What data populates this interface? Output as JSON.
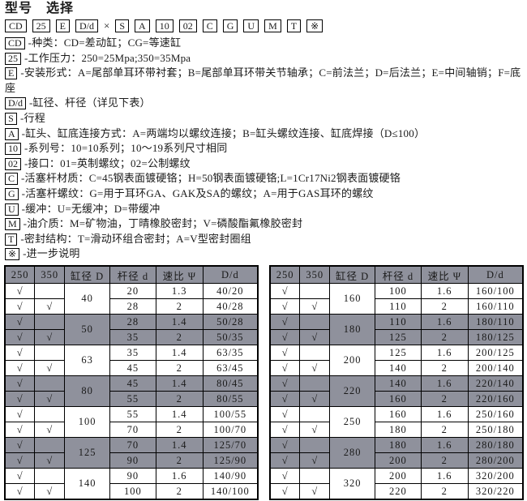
{
  "title": "型号　选择",
  "model_code": {
    "items": [
      {
        "label": "CD",
        "boxed": true
      },
      {
        "label": "25",
        "boxed": true
      },
      {
        "label": "E",
        "boxed": true
      },
      {
        "label": "D/d",
        "boxed": true
      },
      {
        "label": "×",
        "boxed": false
      },
      {
        "label": "S",
        "boxed": true
      },
      {
        "label": "A",
        "boxed": true
      },
      {
        "label": "10",
        "boxed": true
      },
      {
        "label": "02",
        "boxed": true
      },
      {
        "label": "C",
        "boxed": true
      },
      {
        "label": "G",
        "boxed": true
      },
      {
        "label": "U",
        "boxed": true
      },
      {
        "label": "M",
        "boxed": true
      },
      {
        "label": "T",
        "boxed": true
      },
      {
        "label": "※",
        "boxed": true
      }
    ]
  },
  "definitions": [
    {
      "code": "CD",
      "text": "-种类：CD=差动缸；CG=等速缸"
    },
    {
      "code": "25",
      "text": "-工作压力：250=25Mpa;350=35Mpa"
    },
    {
      "code": "E",
      "text": "-安装形式：A=尾部单耳环带衬套；B=尾部单耳环带关节轴承；C=前法兰；D=后法兰；E=中间轴销；F=底座"
    },
    {
      "code": "D/d",
      "text": "-缸径、杆径（详见下表）"
    },
    {
      "code": "S",
      "text": "-行程"
    },
    {
      "code": "A",
      "text": "-缸头、缸底连接方式：A=两端均以螺纹连接；B=缸头螺纹连接、缸底焊接（D≤100）"
    },
    {
      "code": "10",
      "text": "-系列号：10=10系列；10～19系列尺寸相同"
    },
    {
      "code": "02",
      "text": "-接口：01=英制螺纹；02=公制螺纹"
    },
    {
      "code": "C",
      "text": "-活塞杆材质：C=45钢表面镀硬铬；H=50钢表面镀硬铬;L=1Cr17Ni2钢表面镀硬铬"
    },
    {
      "code": "G",
      "text": "-活塞杆螺纹：G=用于耳环GA、GAK及SA的螺纹；A=用于GAS耳环的螺纹"
    },
    {
      "code": "U",
      "text": "-缓冲：U=无缓冲；D=带缓冲"
    },
    {
      "code": "M",
      "text": "-油介质：M=矿物油，丁晴橡胶密封；V=磷酸酯氟橡胶密封"
    },
    {
      "code": "T",
      "text": "-密封结构：T=滑动环组合密封；A=V型密封圈组"
    },
    {
      "code": "※",
      "text": "-进一步说明"
    }
  ],
  "check_symbol": "√",
  "colors": {
    "shaded_row": "#8f919c",
    "border": "#000000",
    "background": "#ffffff"
  },
  "tables": [
    {
      "headers": [
        "250",
        "350",
        "缸径 D",
        "杆径 d",
        "速比 Ψ",
        "D/d"
      ],
      "groups": [
        {
          "bore": "40",
          "shaded": false,
          "rows": [
            {
              "p250": true,
              "p350": false,
              "rod": "20",
              "ratio": "1.3",
              "dd": "40/20"
            },
            {
              "p250": true,
              "p350": true,
              "rod": "28",
              "ratio": "2",
              "dd": "40/28"
            }
          ]
        },
        {
          "bore": "50",
          "shaded": true,
          "rows": [
            {
              "p250": true,
              "p350": false,
              "rod": "28",
              "ratio": "1.4",
              "dd": "50/28"
            },
            {
              "p250": true,
              "p350": true,
              "rod": "35",
              "ratio": "2",
              "dd": "50/35"
            }
          ]
        },
        {
          "bore": "63",
          "shaded": false,
          "rows": [
            {
              "p250": true,
              "p350": false,
              "rod": "35",
              "ratio": "1.4",
              "dd": "63/35"
            },
            {
              "p250": true,
              "p350": true,
              "rod": "45",
              "ratio": "2",
              "dd": "63/45"
            }
          ]
        },
        {
          "bore": "80",
          "shaded": true,
          "rows": [
            {
              "p250": true,
              "p350": false,
              "rod": "45",
              "ratio": "1.4",
              "dd": "80/45"
            },
            {
              "p250": true,
              "p350": true,
              "rod": "55",
              "ratio": "2",
              "dd": "80/55"
            }
          ]
        },
        {
          "bore": "100",
          "shaded": false,
          "rows": [
            {
              "p250": true,
              "p350": false,
              "rod": "55",
              "ratio": "1.4",
              "dd": "100/55"
            },
            {
              "p250": true,
              "p350": true,
              "rod": "70",
              "ratio": "2",
              "dd": "100/70"
            }
          ]
        },
        {
          "bore": "125",
          "shaded": true,
          "rows": [
            {
              "p250": true,
              "p350": false,
              "rod": "70",
              "ratio": "1.4",
              "dd": "125/70"
            },
            {
              "p250": true,
              "p350": true,
              "rod": "90",
              "ratio": "2",
              "dd": "125/90"
            }
          ]
        },
        {
          "bore": "140",
          "shaded": false,
          "rows": [
            {
              "p250": true,
              "p350": false,
              "rod": "90",
              "ratio": "1.6",
              "dd": "140/90"
            },
            {
              "p250": true,
              "p350": true,
              "rod": "100",
              "ratio": "2",
              "dd": "140/100"
            }
          ]
        }
      ]
    },
    {
      "headers": [
        "250",
        "350",
        "缸径 D",
        "杆径 d",
        "速比 Ψ",
        "D/d"
      ],
      "groups": [
        {
          "bore": "160",
          "shaded": false,
          "rows": [
            {
              "p250": true,
              "p350": false,
              "rod": "100",
              "ratio": "1.6",
              "dd": "160/100"
            },
            {
              "p250": true,
              "p350": true,
              "rod": "110",
              "ratio": "2",
              "dd": "160/110"
            }
          ]
        },
        {
          "bore": "180",
          "shaded": true,
          "rows": [
            {
              "p250": true,
              "p350": false,
              "rod": "110",
              "ratio": "1.6",
              "dd": "180/110"
            },
            {
              "p250": true,
              "p350": true,
              "rod": "125",
              "ratio": "2",
              "dd": "180/125"
            }
          ]
        },
        {
          "bore": "200",
          "shaded": false,
          "rows": [
            {
              "p250": true,
              "p350": false,
              "rod": "125",
              "ratio": "1.6",
              "dd": "200/125"
            },
            {
              "p250": true,
              "p350": true,
              "rod": "140",
              "ratio": "2",
              "dd": "200/140"
            }
          ]
        },
        {
          "bore": "220",
          "shaded": true,
          "rows": [
            {
              "p250": true,
              "p350": false,
              "rod": "140",
              "ratio": "1.6",
              "dd": "220/140"
            },
            {
              "p250": true,
              "p350": true,
              "rod": "160",
              "ratio": "2",
              "dd": "220/160"
            }
          ]
        },
        {
          "bore": "250",
          "shaded": false,
          "rows": [
            {
              "p250": true,
              "p350": false,
              "rod": "160",
              "ratio": "1.6",
              "dd": "250/160"
            },
            {
              "p250": true,
              "p350": true,
              "rod": "180",
              "ratio": "2",
              "dd": "250/180"
            }
          ]
        },
        {
          "bore": "280",
          "shaded": true,
          "rows": [
            {
              "p250": true,
              "p350": false,
              "rod": "180",
              "ratio": "1.6",
              "dd": "280/180"
            },
            {
              "p250": true,
              "p350": true,
              "rod": "200",
              "ratio": "2",
              "dd": "280/200"
            }
          ]
        },
        {
          "bore": "320",
          "shaded": false,
          "rows": [
            {
              "p250": true,
              "p350": false,
              "rod": "200",
              "ratio": "1.6",
              "dd": "320/200"
            },
            {
              "p250": true,
              "p350": true,
              "rod": "220",
              "ratio": "2",
              "dd": "320/220"
            }
          ]
        }
      ]
    }
  ]
}
